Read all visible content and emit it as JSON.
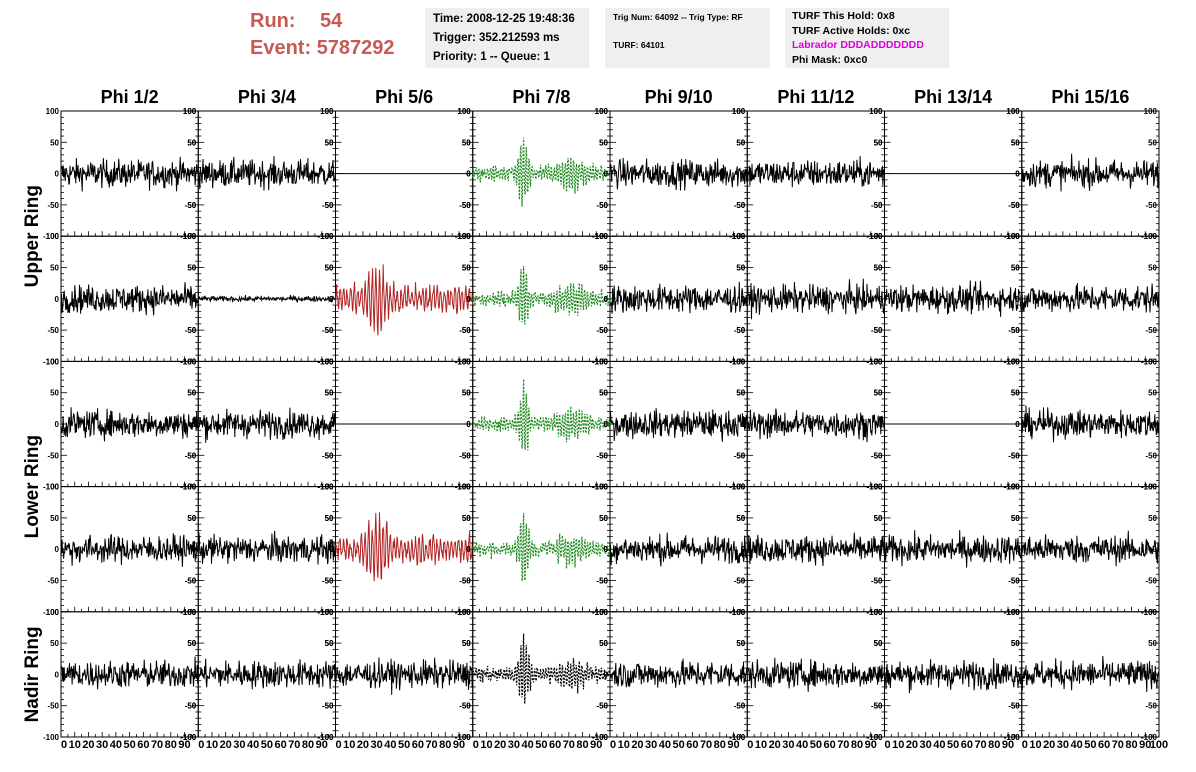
{
  "header": {
    "run_label": "Run:",
    "run_value": "54",
    "event_label": "Event:",
    "event_value": "5787292"
  },
  "info_time": {
    "time": "Time: 2008-12-25 19:48:36",
    "trigger": "Trigger: 352.212593 ms",
    "priority": "Priority: 1 -- Queue: 1"
  },
  "info_trig": {
    "trig": "Trig Num: 64092 -- Trig Type: RF",
    "turf": "TURF: 64101"
  },
  "info_turf": {
    "hold": "TURF This Hold: 0x8",
    "active": "TURF Active Holds: 0xc",
    "labrador": "Labrador DDDADDDDDDD",
    "phimask": "Phi Mask: 0xc0"
  },
  "colors": {
    "header_red": "#c85a54",
    "labrador_magenta": "#e000e0",
    "trace_black": "#000000",
    "trace_red": "#b22222",
    "trace_green": "#228b22"
  },
  "chart_data": {
    "type": "line",
    "columns": [
      "Phi 1/2",
      "Phi 3/4",
      "Phi 5/6",
      "Phi 7/8",
      "Phi 9/10",
      "Phi 11/12",
      "Phi 13/14",
      "Phi 15/16"
    ],
    "ring_labels": [
      "Upper Ring",
      "Lower Ring",
      "Nadir Ring"
    ],
    "ylim": [
      -100,
      100
    ],
    "xlim": [
      0,
      100
    ],
    "yticks_labeled": [
      100,
      50,
      0,
      -50,
      -100
    ],
    "xtick_labels": [
      "0",
      "10",
      "20",
      "30",
      "40",
      "50",
      "60",
      "70",
      "80",
      "90",
      "100"
    ],
    "grid": false,
    "traces": [
      [
        "noise",
        "noise",
        "flat",
        "green",
        "noise",
        "noise",
        "flat",
        "noise"
      ],
      [
        "noise",
        "small",
        "red",
        "green",
        "noise",
        "noise",
        "noise",
        "noise"
      ],
      [
        "noise",
        "noise",
        "flat",
        "green",
        "noise",
        "noise",
        "flat",
        "noise"
      ],
      [
        "noise",
        "noise",
        "red",
        "green",
        "noise",
        "noise",
        "noise",
        "noise"
      ],
      [
        "noise",
        "noise",
        "noise",
        "black-dashed",
        "noise",
        "noise",
        "noise",
        "noise"
      ]
    ]
  }
}
